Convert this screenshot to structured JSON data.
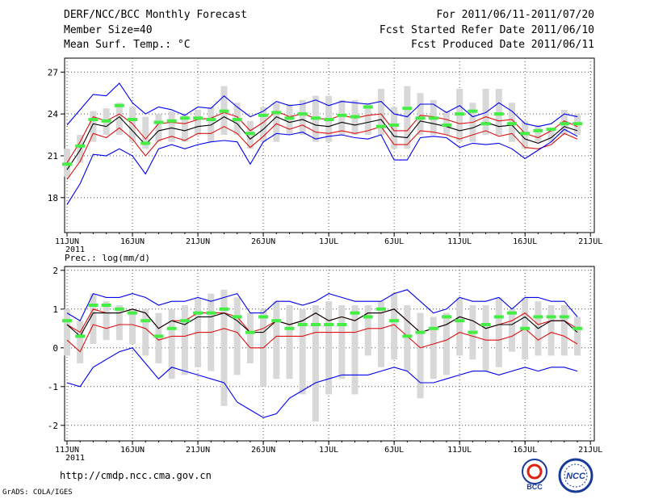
{
  "header": {
    "title": "DERF/NCC/BCC Monthly Forecast",
    "member_size": "Member Size=40",
    "variable": "Mean Surf. Temp.: °C",
    "period": "For 2011/06/11-2011/07/20",
    "start_ref": "Fcst Started Refer Date 2011/06/10",
    "produced": "Fcst Produced Date 2011/06/11"
  },
  "footer": {
    "url": "http://cmdp.ncc.cma.gov.cn",
    "grads": "GrADS: COLA/IGES",
    "logo_bcc": "BCC",
    "logo_ncc": "NCC"
  },
  "colors": {
    "max_line": "#0000ee",
    "min_line": "#0000ee",
    "mean_line": "#000000",
    "spread_line": "#dd1111",
    "box": "#d8d8d8",
    "median": "#44ee44"
  },
  "chart_data": [
    {
      "type": "line",
      "title": "Mean Surf. Temp.: °C",
      "x_tick_labels": [
        "11JUN",
        "16JUN",
        "21JUN",
        "26JUN",
        "1JUL",
        "6JUL",
        "11JUL",
        "16JUL",
        "21JUL"
      ],
      "x_year_label": "2011",
      "ylim": [
        15.5,
        28
      ],
      "y_ticks": [
        18,
        21,
        24,
        27
      ],
      "grid": true,
      "days": 40,
      "series": [
        {
          "name": "max",
          "values": [
            23.2,
            24.3,
            25.4,
            25.3,
            26.2,
            24.8,
            24.0,
            24.5,
            24.3,
            23.9,
            24.5,
            24.4,
            25.3,
            24.5,
            23.8,
            24.2,
            24.9,
            24.6,
            24.7,
            25.0,
            24.6,
            24.9,
            24.8,
            24.7,
            24.9,
            24.0,
            23.8,
            24.7,
            24.7,
            24.1,
            24.6,
            23.8,
            24.1,
            24.8,
            24.2,
            23.3,
            23.1,
            23.3,
            24.0,
            23.8
          ]
        },
        {
          "name": "upper",
          "values": [
            20.5,
            22.0,
            23.8,
            23.5,
            24.0,
            23.3,
            22.2,
            23.3,
            23.4,
            23.3,
            23.6,
            23.7,
            24.1,
            23.8,
            22.8,
            23.4,
            24.2,
            23.8,
            24.0,
            23.7,
            23.6,
            23.9,
            23.7,
            23.9,
            24.0,
            22.8,
            22.8,
            23.9,
            23.8,
            23.6,
            23.3,
            23.4,
            23.8,
            23.5,
            23.6,
            22.6,
            22.3,
            22.8,
            23.5,
            23.1
          ]
        },
        {
          "name": "mean",
          "values": [
            20.0,
            21.4,
            23.3,
            23.1,
            23.8,
            22.8,
            21.8,
            22.8,
            23.0,
            22.8,
            23.1,
            23.2,
            23.8,
            23.3,
            22.2,
            22.9,
            23.8,
            23.4,
            23.6,
            23.2,
            23.1,
            23.4,
            23.2,
            23.4,
            23.6,
            22.4,
            22.3,
            23.5,
            23.3,
            23.1,
            22.8,
            23.0,
            23.4,
            23.1,
            23.2,
            22.2,
            21.9,
            22.3,
            23.1,
            22.8
          ]
        },
        {
          "name": "lower",
          "values": [
            19.3,
            20.6,
            22.6,
            22.3,
            23.0,
            22.2,
            21.0,
            22.1,
            22.4,
            22.1,
            22.6,
            22.6,
            23.1,
            22.6,
            21.6,
            22.4,
            23.3,
            22.9,
            23.2,
            22.7,
            22.6,
            22.8,
            22.6,
            22.8,
            23.1,
            21.8,
            21.8,
            22.8,
            22.7,
            22.5,
            22.2,
            22.5,
            22.8,
            22.4,
            22.6,
            21.6,
            21.5,
            21.8,
            22.6,
            22.2
          ]
        },
        {
          "name": "min",
          "values": [
            17.5,
            19.0,
            21.1,
            21.0,
            21.5,
            21.0,
            19.7,
            21.5,
            21.8,
            21.5,
            21.8,
            22.0,
            22.1,
            22.0,
            20.4,
            22.0,
            22.6,
            22.5,
            22.7,
            22.2,
            22.4,
            22.5,
            22.3,
            22.2,
            22.5,
            20.7,
            20.7,
            22.3,
            22.4,
            22.3,
            21.6,
            21.9,
            21.8,
            21.9,
            21.5,
            20.8,
            21.4,
            22.0,
            22.9,
            22.4
          ]
        }
      ],
      "box_low": [
        19.5,
        20.5,
        22.0,
        22.5,
        22.5,
        22.0,
        21.5,
        22.0,
        22.0,
        22.0,
        22.5,
        22.0,
        22.5,
        22.5,
        21.5,
        22.0,
        22.0,
        22.5,
        22.5,
        22.0,
        22.0,
        22.5,
        22.5,
        22.5,
        22.5,
        21.5,
        21.5,
        22.5,
        22.5,
        22.5,
        22.0,
        22.0,
        22.5,
        22.5,
        22.0,
        21.5,
        22.0,
        22.0,
        22.5,
        22.5
      ],
      "box_high": [
        21.5,
        22.5,
        24.2,
        24.4,
        24.8,
        24.5,
        23.8,
        24.0,
        24.2,
        24.0,
        24.3,
        24.5,
        26.0,
        24.8,
        23.5,
        24.5,
        24.8,
        24.7,
        25.0,
        25.3,
        25.3,
        25.0,
        25.0,
        24.8,
        25.8,
        24.5,
        26.0,
        25.5,
        25.0,
        24.2,
        25.8,
        24.8,
        25.8,
        25.8,
        24.8,
        23.5,
        23.2,
        23.0,
        24.3,
        24.0
      ],
      "median": [
        20.4,
        21.7,
        23.6,
        23.5,
        24.6,
        23.6,
        21.9,
        23.4,
        23.5,
        23.7,
        23.7,
        23.6,
        24.2,
        23.6,
        22.6,
        23.9,
        24.1,
        23.7,
        24.0,
        23.7,
        23.6,
        23.9,
        23.8,
        24.5,
        23.1,
        23.2,
        24.4,
        23.7,
        23.7,
        23.2,
        24.0,
        24.2,
        23.3,
        24.0,
        23.3,
        22.6,
        22.8,
        22.9,
        23.3,
        23.3
      ]
    },
    {
      "type": "line",
      "title": "Prec.: log(mm/d)",
      "x_tick_labels": [
        "11JUN",
        "16JUN",
        "21JUN",
        "26JUN",
        "1JUL",
        "6JUL",
        "11JUL",
        "16JUL",
        "21JUL"
      ],
      "x_year_label": "2011",
      "ylim": [
        -2.4,
        2.1
      ],
      "y_ticks": [
        -2,
        -1,
        0,
        1,
        2
      ],
      "grid": true,
      "days": 40,
      "series": [
        {
          "name": "max",
          "values": [
            0.9,
            0.7,
            1.4,
            1.3,
            1.3,
            1.4,
            1.3,
            1.1,
            1.2,
            1.2,
            1.3,
            1.2,
            1.3,
            1.4,
            0.9,
            0.9,
            1.2,
            1.2,
            1.1,
            1.2,
            1.4,
            1.3,
            1.2,
            1.2,
            1.2,
            1.4,
            1.5,
            1.2,
            0.9,
            1.0,
            1.3,
            1.2,
            1.2,
            1.3,
            1.0,
            1.3,
            1.3,
            1.2,
            1.2,
            0.8
          ]
        },
        {
          "name": "upper",
          "values": [
            0.6,
            0.4,
            1.0,
            0.9,
            0.9,
            1.0,
            0.9,
            0.5,
            0.7,
            0.7,
            0.9,
            0.9,
            0.9,
            0.8,
            0.4,
            0.5,
            0.7,
            0.6,
            0.7,
            0.9,
            0.7,
            0.8,
            0.7,
            0.9,
            0.9,
            1.0,
            0.7,
            0.4,
            0.5,
            0.6,
            0.8,
            0.7,
            0.5,
            0.6,
            0.7,
            0.9,
            0.6,
            0.7,
            0.7,
            0.5
          ]
        },
        {
          "name": "mean",
          "values": [
            0.6,
            0.3,
            0.9,
            0.9,
            0.9,
            1.0,
            0.9,
            0.5,
            0.7,
            0.6,
            0.8,
            0.8,
            0.9,
            0.7,
            0.4,
            0.4,
            0.7,
            0.6,
            0.7,
            0.9,
            0.7,
            0.8,
            0.7,
            0.9,
            0.9,
            1.0,
            0.7,
            0.4,
            0.5,
            0.6,
            0.8,
            0.7,
            0.5,
            0.6,
            0.6,
            0.8,
            0.5,
            0.7,
            0.7,
            0.4
          ]
        },
        {
          "name": "lower",
          "values": [
            0.2,
            -0.1,
            0.6,
            0.5,
            0.6,
            0.6,
            0.5,
            0.2,
            0.3,
            0.3,
            0.4,
            0.4,
            0.5,
            0.4,
            0.0,
            0.0,
            0.3,
            0.3,
            0.3,
            0.4,
            0.4,
            0.4,
            0.4,
            0.5,
            0.5,
            0.6,
            0.3,
            0.0,
            0.1,
            0.2,
            0.4,
            0.3,
            0.2,
            0.2,
            0.3,
            0.5,
            0.2,
            0.4,
            0.3,
            0.1
          ]
        },
        {
          "name": "min",
          "values": [
            -0.9,
            -1.0,
            -0.5,
            -0.3,
            -0.1,
            0.0,
            -0.4,
            -0.8,
            -0.5,
            -0.6,
            -0.7,
            -0.8,
            -0.9,
            -1.4,
            -1.6,
            -1.8,
            -1.7,
            -1.3,
            -1.1,
            -0.9,
            -0.8,
            -0.7,
            -0.7,
            -0.7,
            -0.6,
            -0.5,
            -0.6,
            -0.9,
            -0.9,
            -0.8,
            -0.7,
            -0.6,
            -0.6,
            -0.7,
            -0.6,
            -0.5,
            -0.6,
            -0.5,
            -0.5,
            -0.6
          ]
        }
      ],
      "box_low": [
        -0.2,
        -0.4,
        0.1,
        0.2,
        0.2,
        0.1,
        -0.2,
        -0.4,
        -0.8,
        -0.7,
        -0.5,
        -0.6,
        -1.5,
        -0.7,
        -0.4,
        -1.0,
        -0.8,
        -0.8,
        -1.2,
        -1.9,
        -1.2,
        -0.8,
        -1.2,
        -0.2,
        -0.5,
        -0.3,
        -0.6,
        -1.3,
        -0.8,
        -0.7,
        -0.2,
        -0.3,
        -0.6,
        -0.5,
        -0.1,
        -0.3,
        -0.2,
        -0.2,
        -0.2,
        -0.2
      ],
      "box_high": [
        1.0,
        0.7,
        1.4,
        1.2,
        1.1,
        1.0,
        1.0,
        0.9,
        1.0,
        1.1,
        1.3,
        1.4,
        1.5,
        1.3,
        0.9,
        1.0,
        1.2,
        1.1,
        1.0,
        1.1,
        1.2,
        1.1,
        1.1,
        1.1,
        1.2,
        1.4,
        1.1,
        0.9,
        0.8,
        0.9,
        1.3,
        1.1,
        1.1,
        1.3,
        1.0,
        1.3,
        1.2,
        1.1,
        1.1,
        0.8
      ],
      "median": [
        0.7,
        0.3,
        1.1,
        1.1,
        1.0,
        0.9,
        0.7,
        0.3,
        0.5,
        0.7,
        0.9,
        0.9,
        1.0,
        0.8,
        0.4,
        0.8,
        0.7,
        0.5,
        0.6,
        0.6,
        0.6,
        0.6,
        0.9,
        0.8,
        1.0,
        0.7,
        0.3,
        0.4,
        0.5,
        0.8,
        0.7,
        0.4,
        0.6,
        0.8,
        0.9,
        0.5,
        0.8,
        0.8,
        0.8,
        0.5
      ]
    }
  ]
}
